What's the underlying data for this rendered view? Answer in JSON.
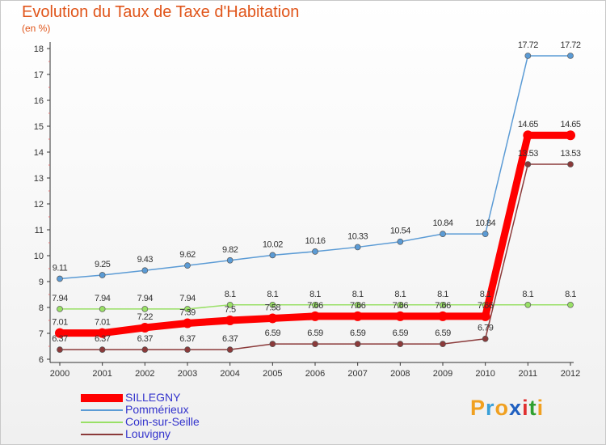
{
  "title": "Evolution du Taux de Taxe d'Habitation",
  "subtitle": "(en %)",
  "logo": {
    "letters": [
      "P",
      "r",
      "o",
      "x",
      "i",
      "t",
      "i"
    ],
    "colors": [
      "#f0a020",
      "#3aa0d8",
      "#f0a020",
      "#2060c0",
      "#e03030",
      "#30a030",
      "#f0a020"
    ]
  },
  "chart_data": {
    "type": "line",
    "title": "Evolution du Taux de Taxe d'Habitation",
    "ylabel": "(en %)",
    "xlabel": "",
    "x": [
      "2000",
      "2001",
      "2002",
      "2003",
      "2004",
      "2005",
      "2006",
      "2007",
      "2008",
      "2009",
      "2010",
      "2011",
      "2012"
    ],
    "ylim": [
      6,
      18
    ],
    "yticks": [
      "6",
      "7",
      "8",
      "9",
      "10",
      "11",
      "12",
      "13",
      "14",
      "15",
      "16",
      "17",
      "18"
    ],
    "grid": false,
    "legend_position": "bottom-left",
    "series": [
      {
        "name": "SILLEGNY",
        "color": "#ff0000",
        "values": [
          7.01,
          7.01,
          7.22,
          7.39,
          7.5,
          7.58,
          7.66,
          7.66,
          7.66,
          7.66,
          7.66,
          14.65,
          14.65
        ],
        "labels": [
          "7.01",
          "7.01",
          "7.22",
          "7.39",
          "7.5",
          "7.58",
          "7.66",
          "7.66",
          "7.66",
          "7.66",
          "7.66",
          "14.65",
          "14.65"
        ]
      },
      {
        "name": "Pommérieux",
        "color": "#5b9bd5",
        "values": [
          9.11,
          9.25,
          9.43,
          9.62,
          9.82,
          10.02,
          10.16,
          10.33,
          10.54,
          10.84,
          10.84,
          17.72,
          17.72
        ],
        "labels": [
          "9.11",
          "9.25",
          "9.43",
          "9.62",
          "9.82",
          "10.02",
          "10.16",
          "10.33",
          "10.54",
          "10.84",
          "10.84",
          "17.72",
          "17.72"
        ]
      },
      {
        "name": "Coin-sur-Seille",
        "color": "#99e066",
        "values": [
          7.94,
          7.94,
          7.94,
          7.94,
          8.1,
          8.1,
          8.1,
          8.1,
          8.1,
          8.1,
          8.1,
          8.1,
          8.1
        ],
        "labels": [
          "7.94",
          "7.94",
          "7.94",
          "7.94",
          "8.1",
          "8.1",
          "8.1",
          "8.1",
          "8.1",
          "8.1",
          "8.1",
          "8.1",
          "8.1"
        ]
      },
      {
        "name": "Louvigny",
        "color": "#8b3a3a",
        "values": [
          6.37,
          6.37,
          6.37,
          6.37,
          6.37,
          6.59,
          6.59,
          6.59,
          6.59,
          6.59,
          6.79,
          13.53,
          13.53
        ],
        "labels": [
          "6.37",
          "6.37",
          "6.37",
          "6.37",
          "6.37",
          "6.59",
          "6.59",
          "6.59",
          "6.59",
          "6.59",
          "6.79",
          "13.53",
          "13.53"
        ]
      }
    ]
  }
}
